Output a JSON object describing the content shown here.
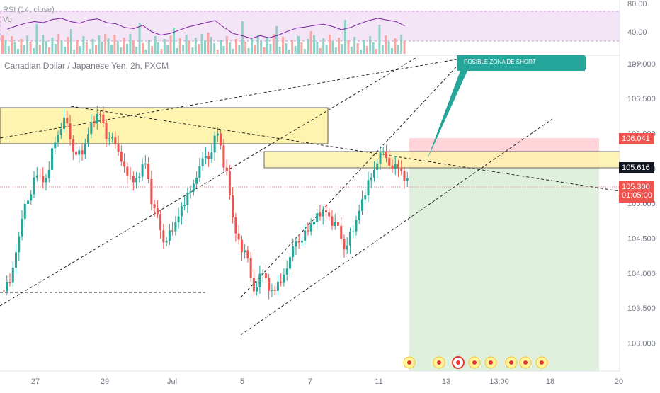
{
  "rsi_panel": {
    "indicator_label": "RSI (14, close)",
    "volume_label": "Vo",
    "upper_level": "80.00",
    "lower_level": "40.00"
  },
  "symbol": {
    "title": "Canadian Dollar / Japanese Yen, 2h, FXCM",
    "currency": "JPY"
  },
  "annotation": {
    "text": "POSIBLE ZONA DE SHORT",
    "color": "#26a69a"
  },
  "price_tags": {
    "stop": "106.041",
    "entry": "105.616",
    "last_price": "105.300",
    "countdown": "01:05:00"
  },
  "colors": {
    "up": "#26a69a",
    "down": "#ef5350",
    "zone_fill": "#fff3b0",
    "stop_zone": "#ffcdd2",
    "target_zone": "#dff0dc",
    "rsi_band": "#f3e5f5",
    "rsi_line": "#7b1fa2"
  },
  "chart_data": {
    "type": "candlestick",
    "title": "Canadian Dollar / Japanese Yen, 2h, FXCM",
    "y_axis_ticks": [
      107.0,
      106.5,
      106.0,
      105.5,
      105.0,
      104.5,
      104.0,
      103.5,
      103.0
    ],
    "y_axis_tick_labels": [
      "107.000",
      "106.500",
      "106.000",
      "105.500",
      "105.000",
      "104.500",
      "104.000",
      "103.500",
      "103.000"
    ],
    "x_axis_labels": [
      "27",
      "29",
      "Jul",
      "5",
      "7",
      "11",
      "13",
      "13:00",
      "18",
      "20"
    ],
    "ylim": [
      102.6,
      107.1
    ],
    "levels": {
      "stop": 106.041,
      "entry": 105.616,
      "last": 105.3
    },
    "close_path": [
      103.9,
      104.5,
      105.1,
      105.4,
      105.3,
      105.9,
      106.2,
      105.8,
      105.7,
      106.1,
      106.3,
      105.9,
      105.8,
      105.4,
      105.3,
      105.6,
      104.9,
      104.5,
      104.6,
      104.9,
      105.2,
      105.5,
      105.7,
      106.0,
      105.4,
      104.6,
      104.3,
      103.8,
      104.0,
      103.7,
      103.9,
      104.2,
      104.5,
      104.6,
      104.8,
      104.9,
      104.7,
      104.4,
      104.6,
      105.0,
      105.4,
      105.7,
      105.6,
      105.5,
      105.3
    ],
    "rsi": [
      52,
      58,
      63,
      66,
      64,
      70,
      72,
      66,
      63,
      69,
      71,
      64,
      62,
      55,
      53,
      59,
      47,
      41,
      44,
      50,
      56,
      60,
      64,
      68,
      55,
      44,
      40,
      35,
      40,
      36,
      41,
      48,
      54,
      56,
      59,
      61,
      57,
      51,
      55,
      62,
      68,
      72,
      69,
      66,
      58
    ],
    "yellow_zones": [
      {
        "top": 106.5,
        "bottom": 106.0
      },
      {
        "top": 105.8,
        "bottom": 105.55
      }
    ]
  }
}
